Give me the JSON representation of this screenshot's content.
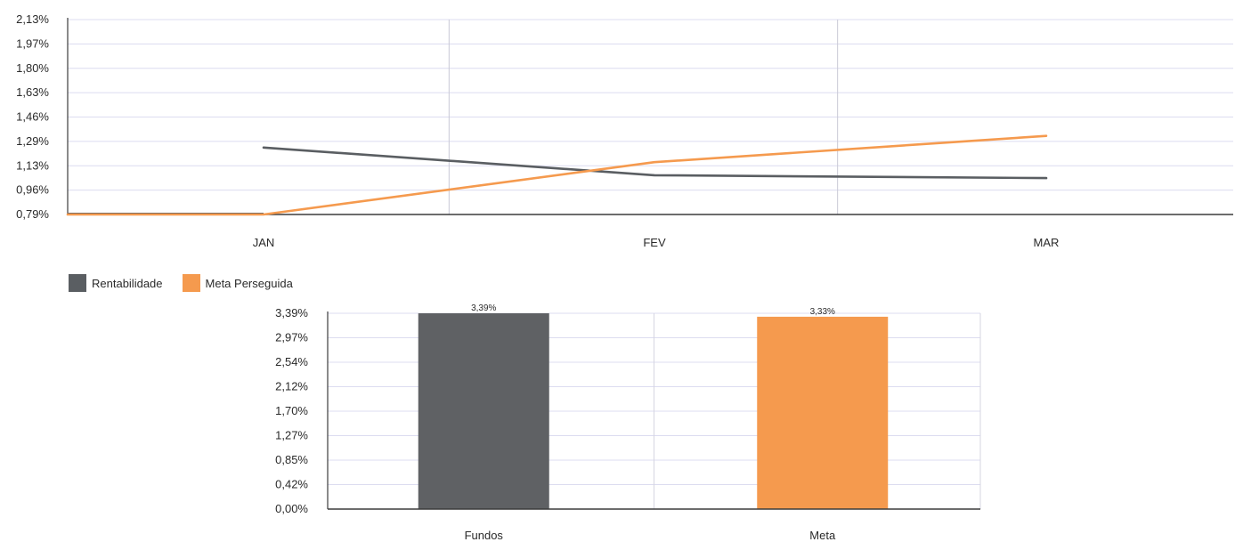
{
  "colors": {
    "rentabilidade": "#5a5e62",
    "meta": "#f59a4e",
    "grid": "#dcdcf0",
    "axis": "#3c3c3c"
  },
  "chart_data": [
    {
      "type": "line",
      "categories": [
        "JAN",
        "FEV",
        "MAR"
      ],
      "y_ticks": [
        "2,13%",
        "1,97%",
        "1,80%",
        "1,63%",
        "1,46%",
        "1,29%",
        "1,13%",
        "0,96%",
        "0,79%"
      ],
      "ylim": [
        0.79,
        2.13
      ],
      "grid": true,
      "series": [
        {
          "name": "Rentabilidade",
          "color": "#5a5e62",
          "values": [
            1.25,
            1.06,
            1.04
          ]
        },
        {
          "name": "Meta Perseguida",
          "color": "#f59a4e",
          "values": [
            0.79,
            1.15,
            1.33
          ]
        }
      ],
      "legend": {
        "placement": "bottom-left",
        "entries": [
          "Rentabilidade",
          "Meta Perseguida"
        ]
      }
    },
    {
      "type": "bar",
      "categories": [
        "Fundos",
        "Meta"
      ],
      "values": [
        3.39,
        3.33
      ],
      "value_labels": [
        "3,39%",
        "3,33%"
      ],
      "colors": [
        "#5f6164",
        "#f59a4e"
      ],
      "y_ticks": [
        "3,39%",
        "2,97%",
        "2,54%",
        "2,12%",
        "1,70%",
        "1,27%",
        "0,85%",
        "0,42%",
        "0,00%"
      ],
      "ylim": [
        0,
        3.39
      ],
      "grid": true
    }
  ]
}
